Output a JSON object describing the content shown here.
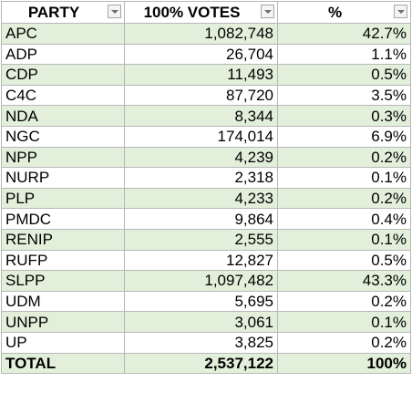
{
  "headers": {
    "party": "PARTY",
    "votes": "100% VOTES",
    "pct": "%"
  },
  "rows": [
    {
      "party": "APC",
      "votes": "1,082,748",
      "pct": "42.7%"
    },
    {
      "party": "ADP",
      "votes": "26,704",
      "pct": "1.1%"
    },
    {
      "party": "CDP",
      "votes": "11,493",
      "pct": "0.5%"
    },
    {
      "party": "C4C",
      "votes": "87,720",
      "pct": "3.5%"
    },
    {
      "party": "NDA",
      "votes": "8,344",
      "pct": "0.3%"
    },
    {
      "party": "NGC",
      "votes": "174,014",
      "pct": "6.9%"
    },
    {
      "party": "NPP",
      "votes": "4,239",
      "pct": "0.2%"
    },
    {
      "party": "NURP",
      "votes": "2,318",
      "pct": "0.1%"
    },
    {
      "party": "PLP",
      "votes": "4,233",
      "pct": "0.2%"
    },
    {
      "party": "PMDC",
      "votes": "9,864",
      "pct": "0.4%"
    },
    {
      "party": "RENIP",
      "votes": "2,555",
      "pct": "0.1%"
    },
    {
      "party": "RUFP",
      "votes": "12,827",
      "pct": "0.5%"
    },
    {
      "party": "SLPP",
      "votes": "1,097,482",
      "pct": "43.3%"
    },
    {
      "party": "UDM",
      "votes": "5,695",
      "pct": "0.2%"
    },
    {
      "party": "UNPP",
      "votes": "3,061",
      "pct": "0.1%"
    },
    {
      "party": "UP",
      "votes": "3,825",
      "pct": "0.2%"
    }
  ],
  "total": {
    "party": "TOTAL",
    "votes": "2,537,122",
    "pct": "100%"
  },
  "colors": {
    "band": "#e2efda",
    "grid": "#b7b7b7"
  }
}
